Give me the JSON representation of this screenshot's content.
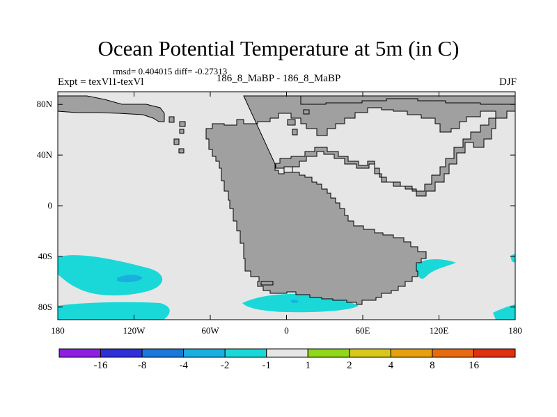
{
  "title": "Ocean Potential Temperature at 5m (in C)",
  "stats": "rmsd= 0.404015 diff= -0.27313",
  "left_label": "Expt = texVl1-texVl",
  "center_label": "186_8_MaBP - 186_8_MaBP",
  "right_label": "DJF",
  "map": {
    "lon_range": [
      -180,
      180
    ],
    "lat_range": [
      -90,
      90
    ],
    "lat_ticks": [
      {
        "value": 80,
        "label": "80N"
      },
      {
        "value": 40,
        "label": "40N"
      },
      {
        "value": 0,
        "label": "0"
      },
      {
        "value": -40,
        "label": "40S"
      },
      {
        "value": -80,
        "label": "80S"
      }
    ],
    "lon_ticks": [
      {
        "value": -180,
        "label": "180"
      },
      {
        "value": -120,
        "label": "120W"
      },
      {
        "value": -60,
        "label": "60W"
      },
      {
        "value": 0,
        "label": "0"
      },
      {
        "value": 60,
        "label": "60E"
      },
      {
        "value": 120,
        "label": "120E"
      },
      {
        "value": 180,
        "label": "180"
      }
    ],
    "land_color": "#a0a0a0",
    "ocean_color": "#e6e6e6"
  },
  "colorbar": {
    "colors": [
      "#8c1fe0",
      "#3030d8",
      "#1a78d8",
      "#19b0e0",
      "#1ad8d8",
      "#e6e6e6",
      "#90d81a",
      "#d8c81a",
      "#e6a010",
      "#e66a10",
      "#e03010"
    ],
    "labels": [
      "-16",
      "-8",
      "-4",
      "-2",
      "-1",
      "1",
      "2",
      "4",
      "8",
      "16"
    ]
  }
}
